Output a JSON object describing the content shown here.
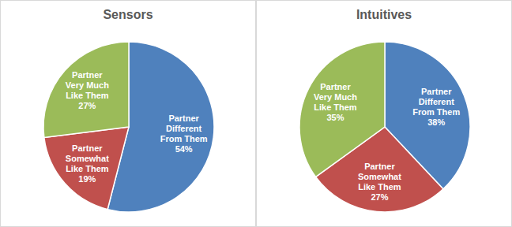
{
  "chart_data": [
    {
      "type": "pie",
      "title": "Sensors",
      "categories": [
        "Partner Different From Them",
        "Partner Somewhat Like Them",
        "Partner Very Much Like Them"
      ],
      "values": [
        54,
        19,
        27
      ],
      "value_labels": [
        "54%",
        "19%",
        "27%"
      ],
      "colors": [
        "#4f81bd",
        "#c0504d",
        "#9bbb59"
      ],
      "data_labels": true
    },
    {
      "type": "pie",
      "title": "Intuitives",
      "categories": [
        "Partner Different From Them",
        "Partner Somewhat Like Them",
        "Partner Very Much Like Them"
      ],
      "values": [
        38,
        27,
        35
      ],
      "value_labels": [
        "38%",
        "27%",
        "35%"
      ],
      "colors": [
        "#4f81bd",
        "#c0504d",
        "#9bbb59"
      ],
      "data_labels": true
    }
  ]
}
